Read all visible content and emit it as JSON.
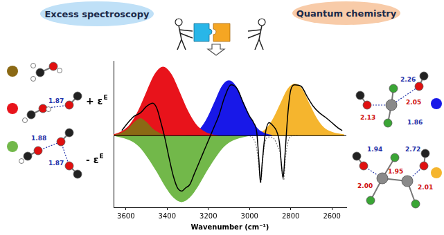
{
  "header": {
    "left_bubble": "Excess spectroscopy",
    "right_bubble": "Quantum chemistry"
  },
  "chart_data": {
    "type": "line",
    "x_label": "Wavenumber (cm⁻¹)",
    "y_labels": [
      {
        "text": "+ ε",
        "superscript": "E"
      },
      {
        "text": "- ε",
        "superscript": "E"
      }
    ],
    "xlim": [
      3660,
      2530
    ],
    "xticks": [
      3600,
      3400,
      3200,
      3000,
      2800,
      2600
    ],
    "ylim": [
      -1.1,
      1.15
    ],
    "yticks": [],
    "tick_labels": "x",
    "grid": false,
    "series": [
      {
        "type": "line",
        "color": "#000000",
        "line_style": "solid",
        "x": [
          3620,
          3590,
          3560,
          3530,
          3500,
          3470,
          3450,
          3430,
          3410,
          3390,
          3370,
          3350,
          3330,
          3310,
          3290,
          3270,
          3250,
          3230,
          3210,
          3190,
          3170,
          3150,
          3120,
          3090,
          3060,
          3030,
          3000,
          2980,
          2965,
          2955,
          2947,
          2938,
          2925,
          2905,
          2885,
          2870,
          2855,
          2845,
          2837,
          2828,
          2815,
          2800,
          2780,
          2750,
          2720,
          2690,
          2660,
          2630,
          2600,
          2570,
          2550
        ],
        "values": [
          0.08,
          0.2,
          0.3,
          0.35,
          0.45,
          0.5,
          0.42,
          0.2,
          -0.05,
          -0.35,
          -0.62,
          -0.8,
          -0.85,
          -0.8,
          -0.75,
          -0.6,
          -0.45,
          -0.3,
          -0.15,
          0.0,
          0.15,
          0.3,
          0.6,
          0.78,
          0.72,
          0.5,
          0.3,
          0.2,
          0.05,
          -0.35,
          -0.72,
          -0.4,
          0.0,
          0.2,
          0.15,
          0.08,
          -0.1,
          -0.45,
          -0.65,
          -0.3,
          0.3,
          0.7,
          0.78,
          0.76,
          0.6,
          0.45,
          0.35,
          0.28,
          0.2,
          0.12,
          0.08
        ]
      },
      {
        "type": "line",
        "color": "#888888",
        "line_style": "dotted",
        "x": [
          3000,
          2980,
          2965,
          2950,
          2945,
          2938,
          2925,
          2905,
          2880,
          2865,
          2850,
          2840,
          2834,
          2826,
          2812,
          2790,
          2760
        ],
        "values": [
          0.0,
          -0.05,
          -0.2,
          -0.6,
          -0.72,
          -0.45,
          -0.1,
          -0.02,
          -0.05,
          -0.15,
          -0.3,
          -0.62,
          -0.68,
          -0.35,
          -0.08,
          0.0,
          0.0
        ]
      },
      {
        "type": "area",
        "color": "#8b6914",
        "x": [
          3660,
          3620,
          3590,
          3560,
          3530,
          3500,
          3470,
          3440,
          3410,
          3380
        ],
        "values": [
          0.01,
          0.05,
          0.11,
          0.21,
          0.27,
          0.21,
          0.11,
          0.05,
          0.01,
          0
        ]
      },
      {
        "type": "area",
        "color": "#e8131b",
        "x": [
          3660,
          3620,
          3580,
          3540,
          3500,
          3460,
          3420,
          3380,
          3340,
          3300,
          3260,
          3220,
          3180,
          3140
        ],
        "values": [
          0.02,
          0.07,
          0.18,
          0.39,
          0.68,
          0.95,
          1.06,
          0.95,
          0.68,
          0.39,
          0.18,
          0.07,
          0.02,
          0
        ]
      },
      {
        "type": "area",
        "color": "#1818e8",
        "x": [
          3310,
          3275,
          3240,
          3205,
          3170,
          3135,
          3100,
          3065,
          3030,
          2995,
          2960,
          2925,
          2890
        ],
        "values": [
          0.01,
          0.04,
          0.11,
          0.28,
          0.52,
          0.76,
          0.85,
          0.76,
          0.52,
          0.28,
          0.11,
          0.04,
          0.01
        ]
      },
      {
        "type": "area",
        "color": "#f5b52e",
        "x": [
          2990,
          2955,
          2920,
          2885,
          2850,
          2815,
          2780,
          2745,
          2710,
          2675,
          2640,
          2600,
          2560,
          2540
        ],
        "values": [
          0.01,
          0.04,
          0.11,
          0.27,
          0.5,
          0.72,
          0.8,
          0.72,
          0.5,
          0.28,
          0.13,
          0.06,
          0.03,
          0.02
        ]
      },
      {
        "type": "area",
        "color": "#72b84a",
        "x": [
          3650,
          3610,
          3570,
          3530,
          3490,
          3450,
          3410,
          3370,
          3330,
          3290,
          3250,
          3210,
          3170,
          3130,
          3090,
          3050,
          3010,
          2970
        ],
        "values": [
          -0.01,
          -0.04,
          -0.09,
          -0.19,
          -0.36,
          -0.56,
          -0.78,
          -0.95,
          -1.02,
          -0.95,
          -0.78,
          -0.56,
          -0.36,
          -0.19,
          -0.09,
          -0.04,
          -0.01,
          0
        ]
      }
    ]
  },
  "structures": [
    {
      "color": "#8b6914",
      "distances": []
    },
    {
      "color": "#e8131b",
      "distances": [
        "1.87"
      ]
    },
    {
      "color": "#72b84a",
      "distances": [
        "1.88",
        "1.87"
      ]
    },
    {
      "color": "#1818e8",
      "distances": [
        "2.26",
        "1.86",
        "2.13",
        "2.05"
      ]
    },
    {
      "color": "#f5b52e",
      "distances": [
        "1.94",
        "2.72",
        "1.95",
        "2.00",
        "2.01"
      ]
    }
  ]
}
